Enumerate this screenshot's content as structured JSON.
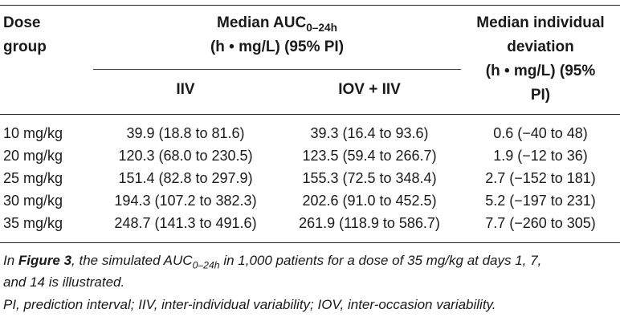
{
  "table": {
    "header": {
      "dose_group_line1": "Dose",
      "dose_group_line2": "group",
      "auc_line1_pre": "Median AUC",
      "auc_line1_sub": "0–24h",
      "auc_line2": "(h • mg/L) (95% PI)",
      "iiv": "IIV",
      "iov_iiv": "IOV + IIV",
      "dev_line1": "Median individual",
      "dev_line2": "deviation",
      "dev_line3": "(h • mg/L) (95%",
      "dev_line4": "PI)"
    },
    "rows": [
      {
        "dose": "10 mg/kg",
        "iiv": "39.9 (18.8 to 81.6)",
        "iov_iiv": "39.3 (16.4 to 93.6)",
        "deviation": "0.6 (−40 to 48)"
      },
      {
        "dose": "20 mg/kg",
        "iiv": "120.3 (68.0 to 230.5)",
        "iov_iiv": "123.5 (59.4 to 266.7)",
        "deviation": "1.9 (−12 to 36)"
      },
      {
        "dose": "25 mg/kg",
        "iiv": "151.4 (82.8 to 297.9)",
        "iov_iiv": "155.3 (72.5 to 348.4)",
        "deviation": "2.7 (−152 to 181)"
      },
      {
        "dose": "30 mg/kg",
        "iiv": "194.3 (107.2 to 382.3)",
        "iov_iiv": "202.6 (91.0 to 452.5)",
        "deviation": "5.2 (−197 to 231)"
      },
      {
        "dose": "35 mg/kg",
        "iiv": "248.7 (141.3 to 491.6)",
        "iov_iiv": "261.9 (118.9 to 586.7)",
        "deviation": "7.7 (−260 to 305)"
      }
    ]
  },
  "footnotes": {
    "note1_pre": "In ",
    "note1_figref": "Figure 3",
    "note1_mid": ", the simulated AUC",
    "note1_sub": "0–24h",
    "note1_post": " in 1,000 patients for a dose of 35 mg/kg at days 1, 7,",
    "note1_line2": "and 14 is illustrated.",
    "note2": "PI, prediction interval; IIV, inter-individual variability; IOV, inter-occasion variability."
  }
}
